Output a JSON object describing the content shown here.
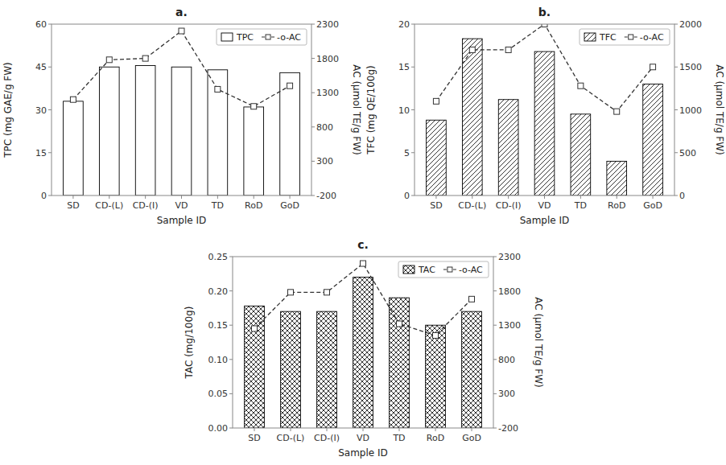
{
  "chart_data": [
    {
      "type": "bar",
      "title": "a.",
      "categories": [
        "SD",
        "CD-(L)",
        "CD-(I)",
        "VD",
        "TD",
        "RoD",
        "GoD"
      ],
      "xlabel": "Sample ID",
      "ylabel": "TPC (mg GAE/g FW)",
      "y2label": "AC (μmol TE/g FW)",
      "ylim": [
        0,
        60
      ],
      "yticks": [
        0,
        15,
        30,
        45,
        60
      ],
      "y2lim": [
        -200,
        2300
      ],
      "y2ticks": [
        -200,
        300,
        800,
        1300,
        1800,
        2300
      ],
      "grid": false,
      "legend": "upper right",
      "series": [
        {
          "name": "TPC",
          "type": "bar",
          "color": "#000000",
          "values": [
            33,
            45,
            45.5,
            45,
            44,
            31,
            43
          ]
        },
        {
          "name": "-o-AC",
          "type": "line",
          "axis": "y2",
          "color": "#333333",
          "line_style": "dashed",
          "marker": "square",
          "values": [
            1200,
            1780,
            1800,
            2200,
            1350,
            1100,
            1400
          ]
        }
      ]
    },
    {
      "type": "bar",
      "title": "b.",
      "categories": [
        "SD",
        "CD-(L)",
        "CD-(I)",
        "VD",
        "TD",
        "RoD",
        "GoD"
      ],
      "xlabel": "Sample ID",
      "ylabel": "TFC (mg QE/100g)",
      "y2label": "AC (μmol TE/g FW)",
      "ylim": [
        0,
        20
      ],
      "yticks": [
        0,
        5,
        10,
        15,
        20
      ],
      "y2lim": [
        0,
        2000
      ],
      "y2ticks": [
        0,
        500,
        1000,
        1500,
        2000
      ],
      "grid": false,
      "legend": "upper right",
      "series": [
        {
          "name": "TFC",
          "type": "bar",
          "color": "#000000",
          "values": [
            8.8,
            18.3,
            11.2,
            16.8,
            9.5,
            4.0,
            13.0
          ]
        },
        {
          "name": "-o-AC",
          "type": "line",
          "axis": "y2",
          "color": "#333333",
          "line_style": "dashed",
          "marker": "square",
          "values": [
            1100,
            1700,
            1700,
            2000,
            1280,
            980,
            1500
          ]
        }
      ]
    },
    {
      "type": "bar",
      "title": "c.",
      "categories": [
        "SD",
        "CD-(L)",
        "CD-(I)",
        "VD",
        "TD",
        "RoD",
        "GoD"
      ],
      "xlabel": "Sample ID",
      "ylabel": "TAC (mg/100g)",
      "y2label": "AC (μmol TE/g FW)",
      "ylim": [
        0,
        0.25
      ],
      "yticks": [
        {
          "value": 0,
          "label": "0.00"
        },
        {
          "value": 0.05,
          "label": "0.05"
        },
        {
          "value": 0.1,
          "label": "0.10"
        },
        {
          "value": 0.15,
          "label": "0.15"
        },
        {
          "value": 0.2,
          "label": "0.20"
        },
        {
          "value": 0.25,
          "label": "0.25"
        }
      ],
      "y2lim": [
        -200,
        2300
      ],
      "y2ticks": [
        -200,
        300,
        800,
        1300,
        1800,
        2300
      ],
      "grid": false,
      "legend": "upper right",
      "series": [
        {
          "name": "TAC",
          "type": "bar",
          "color": "#000000",
          "values": [
            0.178,
            0.17,
            0.17,
            0.22,
            0.19,
            0.15,
            0.17
          ]
        },
        {
          "name": "-o-AC",
          "type": "line",
          "axis": "y2",
          "color": "#333333",
          "line_style": "dashed",
          "marker": "square",
          "values": [
            1250,
            1780,
            1780,
            2200,
            1320,
            1150,
            1680
          ]
        }
      ]
    }
  ]
}
